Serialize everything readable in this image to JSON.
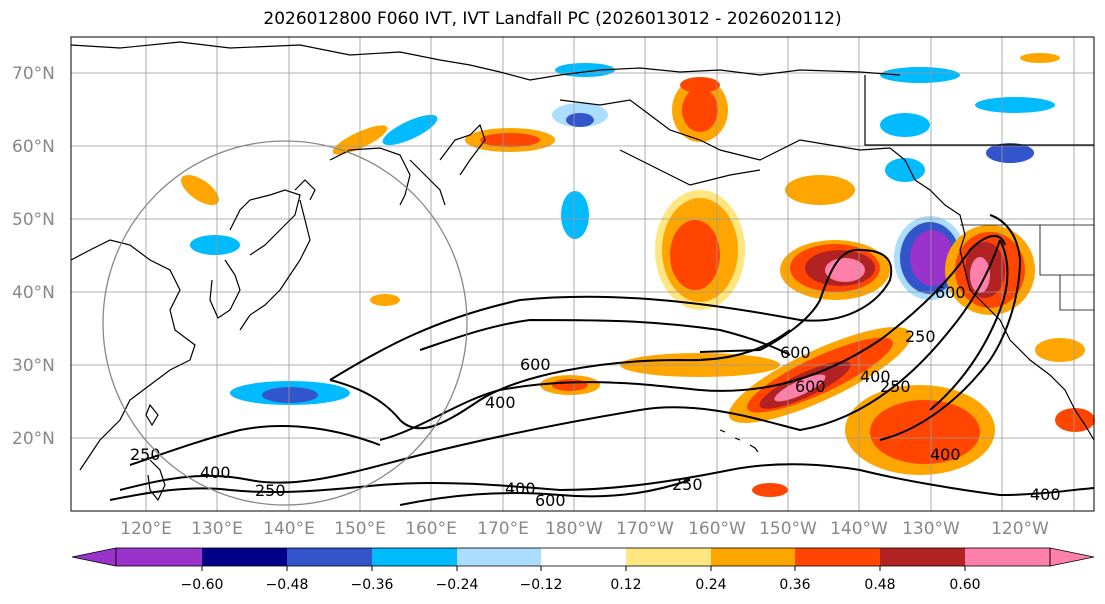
{
  "title": "2026012800 F060 IVT, IVT Landfall PC (2026013012 - 2026020112)",
  "map": {
    "lat_labels": [
      "70°N",
      "60°N",
      "50°N",
      "40°N",
      "30°N",
      "20°N"
    ],
    "lon_labels": [
      "120°E",
      "130°E",
      "140°E",
      "150°E",
      "160°E",
      "170°E",
      "180°W",
      "170°W",
      "160°W",
      "150°W",
      "140°W",
      "130°W",
      "120°W"
    ],
    "contour_labels": [
      "600",
      "600",
      "600",
      "400",
      "400",
      "400",
      "400",
      "250",
      "250",
      "250",
      "250",
      "600",
      "400",
      "600",
      "250",
      "400"
    ]
  },
  "colorbar": {
    "colors": [
      "#9933cc",
      "#000088",
      "#3355cc",
      "#00bbff",
      "#aaddff",
      "#ffffff",
      "#ffe680",
      "#ffa500",
      "#ff4500",
      "#b22222",
      "#ff80aa"
    ],
    "tick_labels": [
      "−0.60",
      "−0.48",
      "−0.36",
      "−0.24",
      "−0.12",
      "0.12",
      "0.24",
      "0.36",
      "0.48",
      "0.60"
    ]
  },
  "palette": {
    "land_outline": "#000000",
    "grid": "#999999",
    "circle": "#888888"
  }
}
